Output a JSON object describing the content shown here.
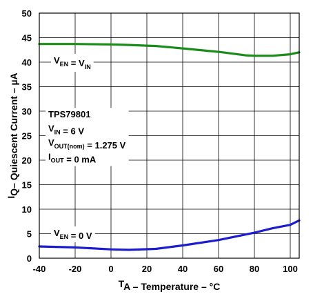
{
  "chart_data": {
    "type": "line",
    "xlabel": {
      "main": "T",
      "sub": "A",
      "rest": " – Temperature – °C"
    },
    "ylabel": {
      "main": "I",
      "sub": "Q",
      "rest": "– Quiescent Current – µA"
    },
    "xlim": [
      -40,
      105
    ],
    "ylim": [
      0,
      50
    ],
    "xticks": [
      "-40",
      "-20",
      "0",
      "20",
      "40",
      "60",
      "80",
      "100"
    ],
    "yticks": [
      "0",
      "5",
      "10",
      "15",
      "20",
      "25",
      "30",
      "35",
      "40",
      "45",
      "50"
    ],
    "grid": true,
    "series": [
      {
        "color": "#1a8c1a",
        "x": [
          -40,
          -20,
          0,
          10,
          25,
          40,
          60,
          75,
          80,
          90,
          100,
          105
        ],
        "y": [
          43.7,
          43.7,
          43.6,
          43.5,
          43.3,
          42.8,
          42.1,
          41.4,
          41.3,
          41.3,
          41.6,
          42.0
        ]
      },
      {
        "color": "#1c1ccc",
        "x": [
          -40,
          -20,
          0,
          10,
          25,
          40,
          60,
          80,
          90,
          100,
          105
        ],
        "y": [
          2.4,
          2.2,
          1.8,
          1.7,
          1.9,
          2.6,
          3.7,
          5.2,
          6.1,
          6.8,
          7.7
        ]
      }
    ],
    "annotations": [
      {
        "lines": [
          [
            {
              "t": "V"
            },
            {
              "t": "EN",
              "sub": true
            },
            {
              "t": " = V"
            },
            {
              "t": "IN",
              "sub": true
            }
          ]
        ]
      },
      {
        "lines": [
          [
            {
              "t": "TPS79801"
            }
          ],
          [
            {
              "t": "V"
            },
            {
              "t": "IN",
              "sub": true
            },
            {
              "t": " = 6 V"
            }
          ],
          [
            {
              "t": "V"
            },
            {
              "t": "OUT(nom)",
              "sub": true
            },
            {
              "t": " = 1.275 V"
            }
          ],
          [
            {
              "t": "I"
            },
            {
              "t": "OUT",
              "sub": true
            },
            {
              "t": " = 0 mA"
            }
          ]
        ]
      },
      {
        "lines": [
          [
            {
              "t": "V"
            },
            {
              "t": "EN",
              "sub": true
            },
            {
              "t": " = 0 V"
            }
          ]
        ]
      }
    ]
  }
}
